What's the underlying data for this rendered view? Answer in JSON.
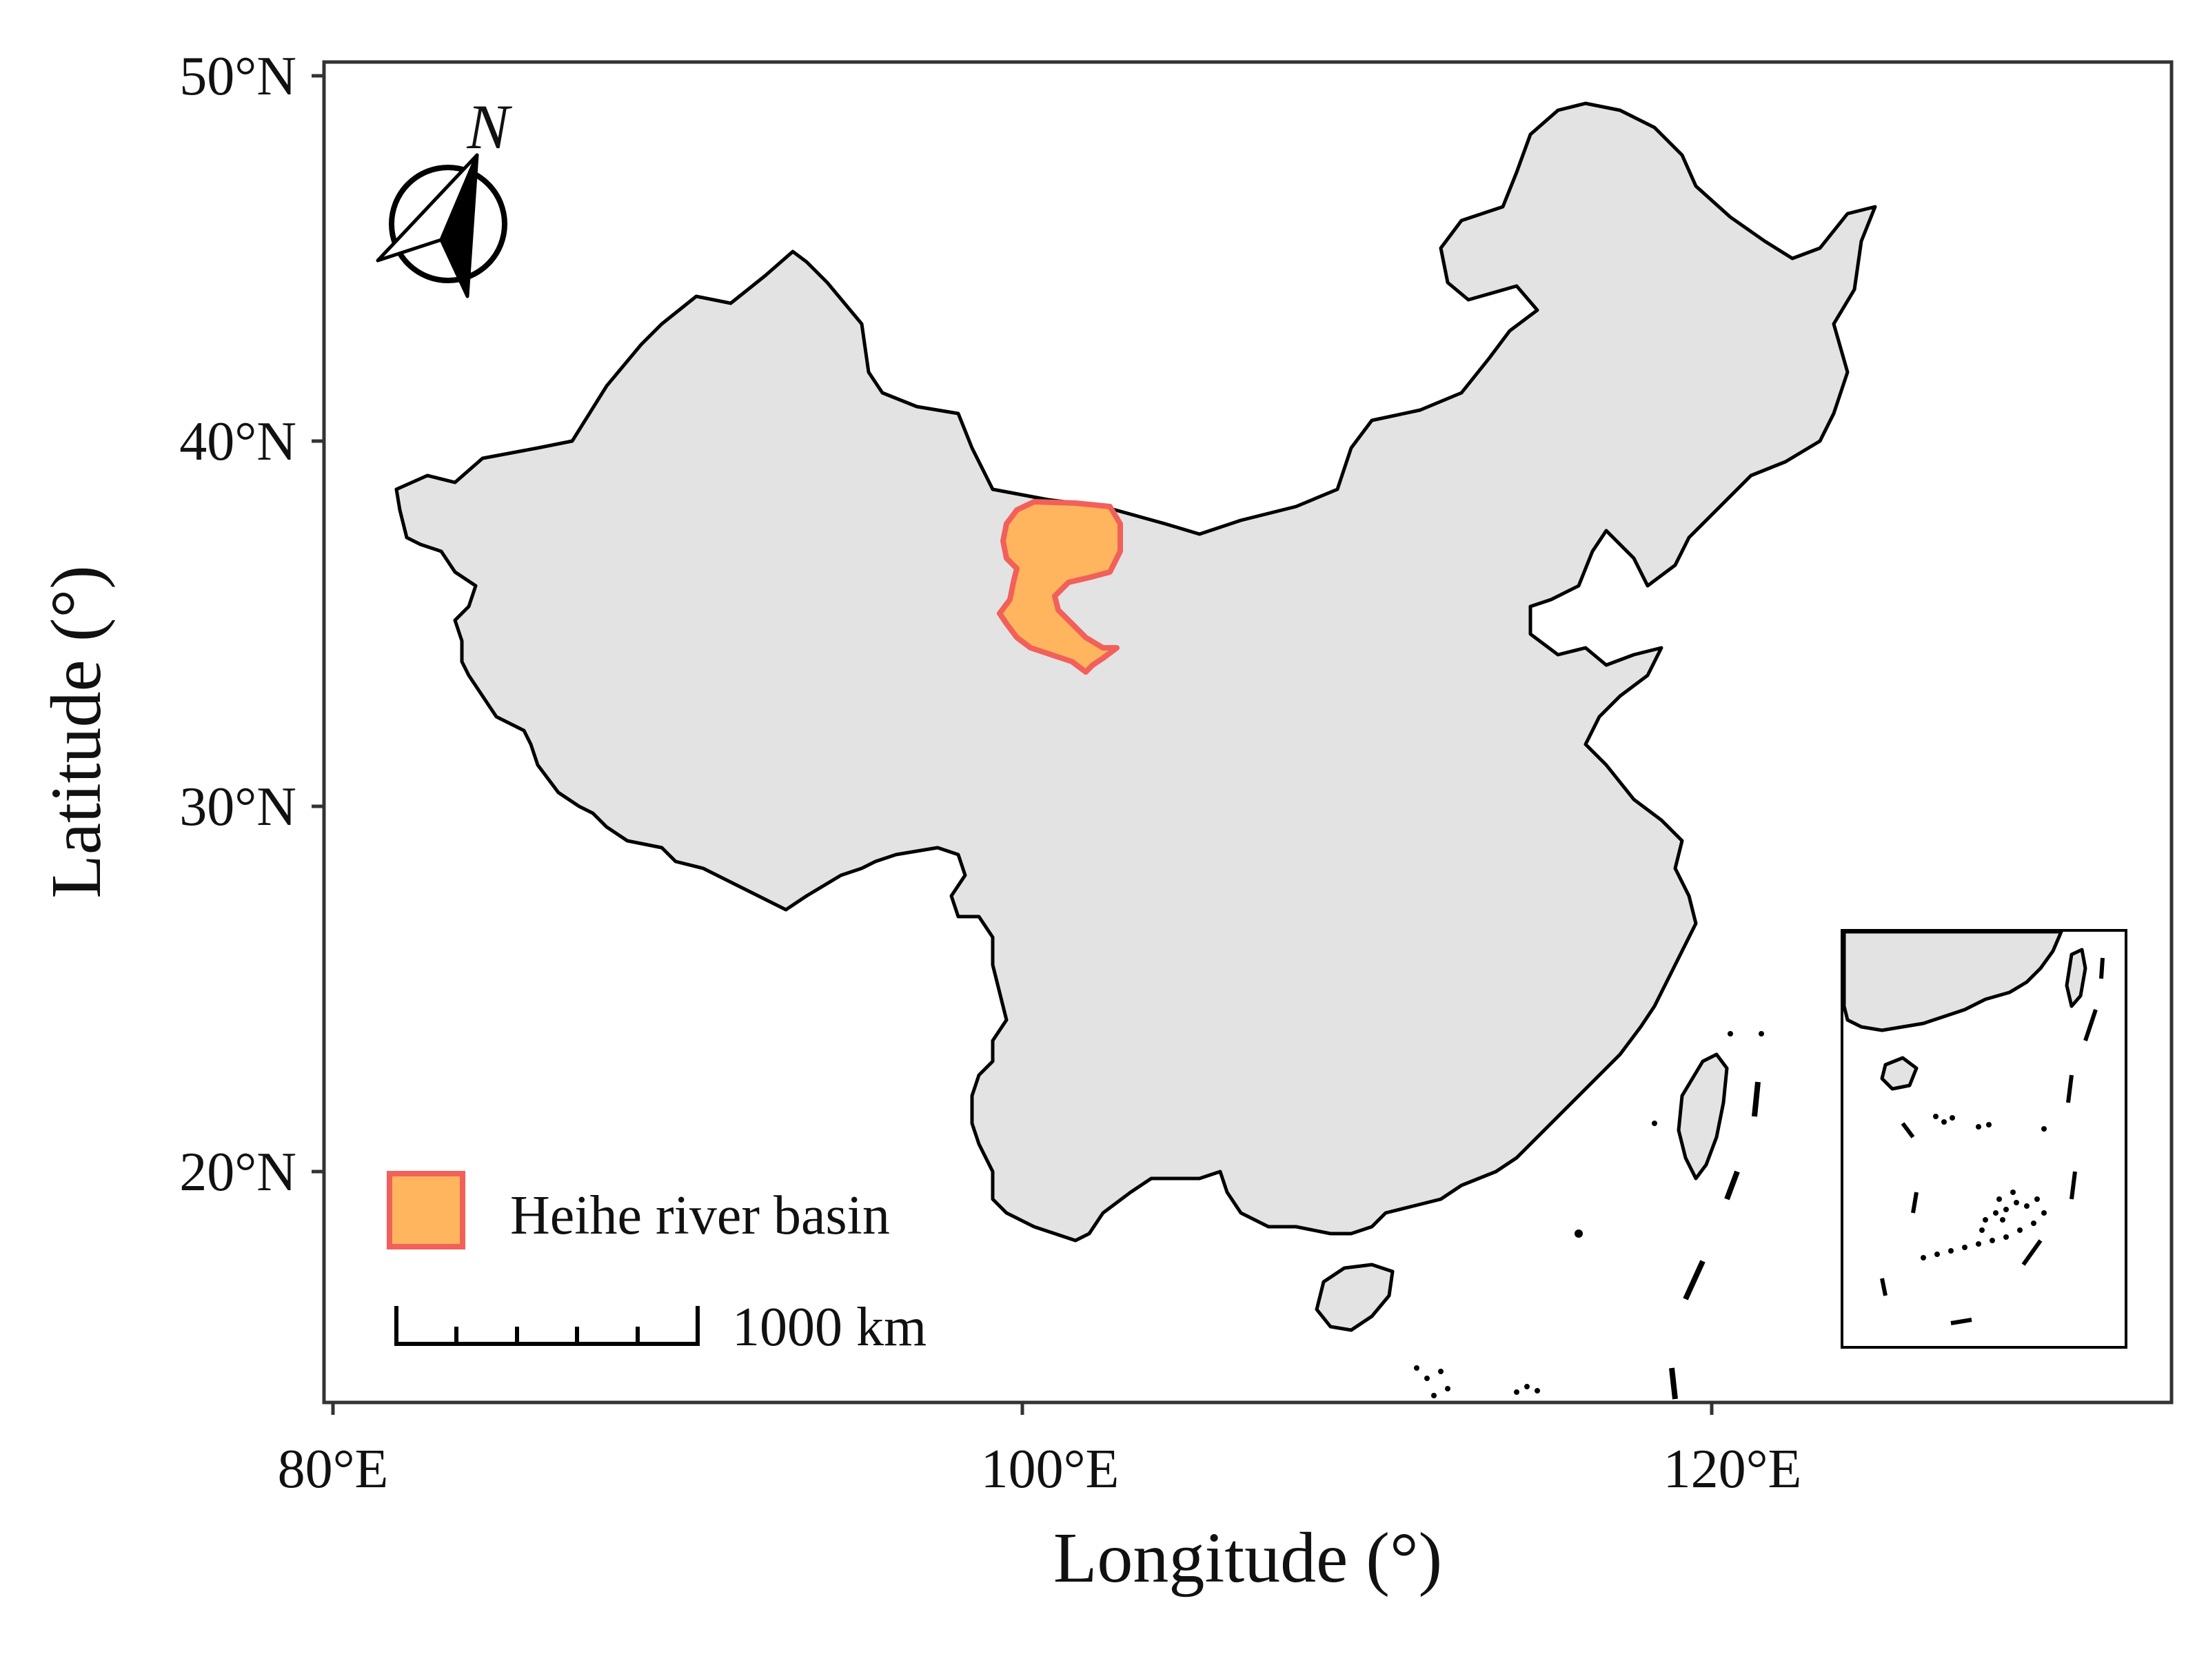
{
  "map": {
    "x_axis": {
      "title": "Longitude (°)",
      "ticks": [
        {
          "value": 80,
          "label": "80°E"
        },
        {
          "value": 100,
          "label": "100°E"
        },
        {
          "value": 120,
          "label": "120°E"
        }
      ]
    },
    "y_axis": {
      "title": "Latitude (°)",
      "ticks": [
        {
          "value": 50,
          "label": "50°N"
        },
        {
          "value": 40,
          "label": "40°N"
        },
        {
          "value": 30,
          "label": "30°N"
        },
        {
          "value": 20,
          "label": "20°N"
        }
      ]
    },
    "north_arrow": {
      "label": "N"
    },
    "legend": {
      "items": [
        {
          "label": "Heihe river basin",
          "fill": "#ffb55e",
          "stroke": "#f2605a"
        }
      ]
    },
    "scale_bar": {
      "label": "1000 km"
    },
    "colors": {
      "land": "#e3e3e3",
      "basin_fill": "#ffb55e",
      "basin_outline": "#f2605a",
      "background": "#ffffff"
    },
    "inset": {
      "description_shown": false
    }
  }
}
